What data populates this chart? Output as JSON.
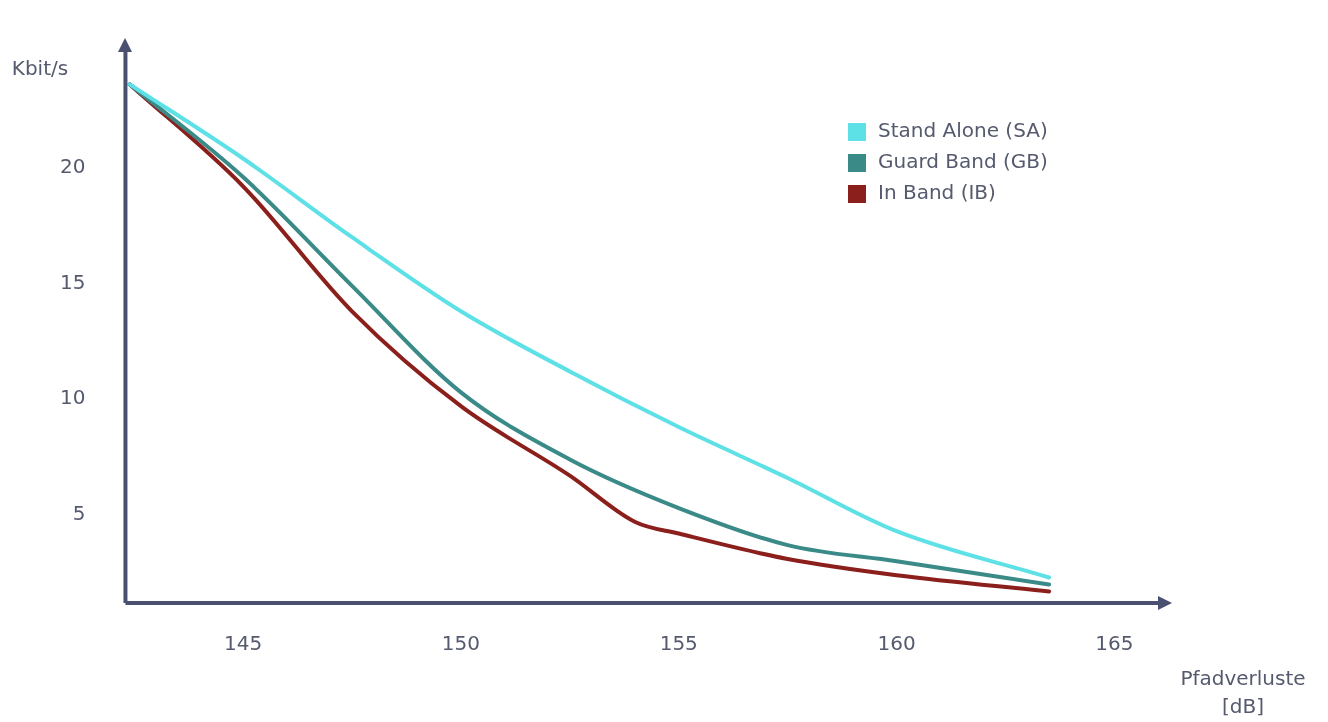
{
  "chart_data": {
    "type": "line",
    "xlabel": "Pfadverluste [dB]",
    "ylabel": "Kbit/s",
    "xlim": [
      142.3,
      166
    ],
    "ylim": [
      1.2,
      25
    ],
    "xticks": [
      145,
      150,
      155,
      160,
      165
    ],
    "yticks": [
      5,
      10,
      15,
      20
    ],
    "grid": false,
    "legend": "top right",
    "marker": "none",
    "line_style": "solid",
    "series": [
      {
        "name": "Stand Alone (SA)",
        "color": "#5de0e6",
        "x": [
          142.4,
          145,
          147.5,
          150,
          152.5,
          155,
          157.5,
          160,
          163.5
        ],
        "values": [
          23.6,
          20.4,
          17,
          13.8,
          11.2,
          8.8,
          6.6,
          4.3,
          2.3
        ]
      },
      {
        "name": "Guard Band (GB)",
        "color": "#3a8a88",
        "x": [
          142.4,
          145,
          147.5,
          150,
          152.5,
          155,
          157.5,
          160,
          163.5
        ],
        "values": [
          23.6,
          19.6,
          14.9,
          10.3,
          7.4,
          5.3,
          3.7,
          3,
          2
        ]
      },
      {
        "name": "In Band (IB)",
        "color": "#8b1f1c",
        "x": [
          142.4,
          145,
          147.5,
          150,
          152.5,
          154,
          155,
          157.5,
          160,
          163.5
        ],
        "values": [
          23.6,
          19.2,
          13.8,
          9.7,
          6.7,
          4.7,
          4.2,
          3.1,
          2.4,
          1.7
        ]
      }
    ]
  }
}
